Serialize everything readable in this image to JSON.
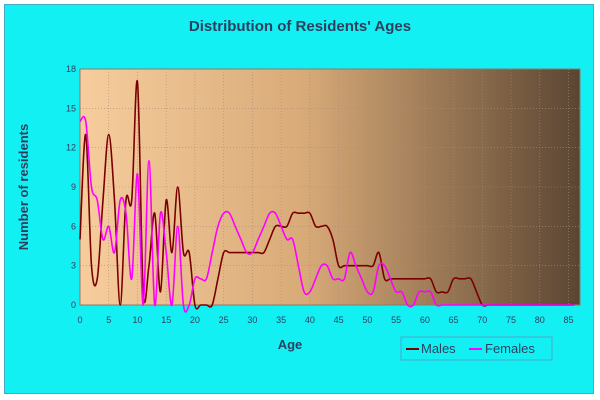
{
  "chart_data": {
    "type": "line",
    "title": "Distribution of Residents' Ages",
    "xlabel": "Age",
    "ylabel": "Number of residents",
    "xlim": [
      0,
      87
    ],
    "ylim": [
      0,
      18
    ],
    "x_ticks": [
      "0",
      "5",
      "10",
      "15",
      "20",
      "25",
      "30",
      "35",
      "40",
      "45",
      "50",
      "55",
      "60",
      "65",
      "70",
      "75",
      "80",
      "85"
    ],
    "y_ticks": [
      "0",
      "3",
      "6",
      "9",
      "12",
      "15",
      "18"
    ],
    "grid": true,
    "legend_position": "bottom-right",
    "colors": {
      "background": "#13f0f3",
      "plot_light": "#f7cd9d",
      "plot_dark": "#5b4532",
      "males": "#7a0000",
      "females": "#ff00ff",
      "text": "#2d3f5f"
    },
    "series": [
      {
        "name": "Males",
        "x": [
          0,
          1,
          2,
          3,
          4,
          5,
          6,
          7,
          8,
          9,
          10,
          11,
          12,
          13,
          14,
          15,
          16,
          17,
          18,
          19,
          20,
          21,
          22,
          23,
          24,
          25,
          26,
          27,
          28,
          29,
          30,
          31,
          32,
          33,
          34,
          35,
          36,
          37,
          38,
          39,
          40,
          41,
          42,
          43,
          44,
          45,
          46,
          47,
          48,
          49,
          50,
          51,
          52,
          53,
          54,
          55,
          56,
          57,
          58,
          59,
          60,
          61,
          62,
          63,
          64,
          65,
          66,
          67,
          68,
          69,
          70,
          71,
          72,
          73,
          74,
          75,
          76,
          77,
          78,
          79,
          80,
          81,
          82,
          83,
          84,
          85,
          86
        ],
        "values": [
          5,
          13,
          3,
          2,
          8,
          13,
          8,
          0,
          8,
          8,
          17,
          1,
          3,
          7,
          1,
          8,
          4,
          9,
          4,
          4,
          0,
          0,
          0,
          0,
          2,
          4,
          4,
          4,
          4,
          4,
          4,
          4,
          4,
          5,
          6,
          6,
          6,
          7,
          7,
          7,
          7,
          6,
          6,
          6,
          5,
          3,
          3,
          3,
          3,
          3,
          3,
          3,
          4,
          2,
          2,
          2,
          2,
          2,
          2,
          2,
          2,
          2,
          1,
          1,
          1,
          2,
          2,
          2,
          2,
          1,
          0,
          0,
          0,
          0,
          0,
          0,
          0,
          0,
          0,
          0,
          0,
          0,
          0,
          0,
          0,
          0,
          0
        ]
      },
      {
        "name": "Females",
        "x": [
          0,
          1,
          2,
          3,
          4,
          5,
          6,
          7,
          8,
          9,
          10,
          11,
          12,
          13,
          14,
          15,
          16,
          17,
          18,
          19,
          20,
          21,
          22,
          23,
          24,
          25,
          26,
          27,
          28,
          29,
          30,
          31,
          32,
          33,
          34,
          35,
          36,
          37,
          38,
          39,
          40,
          41,
          42,
          43,
          44,
          45,
          46,
          47,
          48,
          49,
          50,
          51,
          52,
          53,
          54,
          55,
          56,
          57,
          58,
          59,
          60,
          61,
          62,
          63,
          64,
          65,
          66,
          67,
          68,
          69,
          70,
          71,
          72,
          73,
          74,
          75,
          76,
          77,
          78,
          79,
          80,
          81,
          82,
          83,
          84,
          85,
          86
        ],
        "values": [
          14,
          14,
          9,
          8,
          5,
          6,
          4,
          8,
          7,
          2,
          10,
          0,
          11,
          0,
          7,
          4,
          0,
          6,
          0,
          0,
          2,
          2,
          2,
          4,
          6,
          7,
          7,
          6,
          5,
          4,
          4,
          5,
          6,
          7,
          7,
          6,
          5,
          5,
          3,
          1,
          1,
          2,
          3,
          3,
          2,
          2,
          2,
          4,
          3,
          2,
          1,
          1,
          3,
          3,
          2,
          1,
          1,
          0,
          0,
          1,
          1,
          1,
          0,
          0,
          0,
          0,
          0,
          0,
          0,
          0,
          0,
          0,
          0,
          0,
          0,
          0,
          0,
          0,
          0,
          0,
          0,
          0,
          0,
          0,
          0,
          0,
          0
        ]
      }
    ]
  }
}
